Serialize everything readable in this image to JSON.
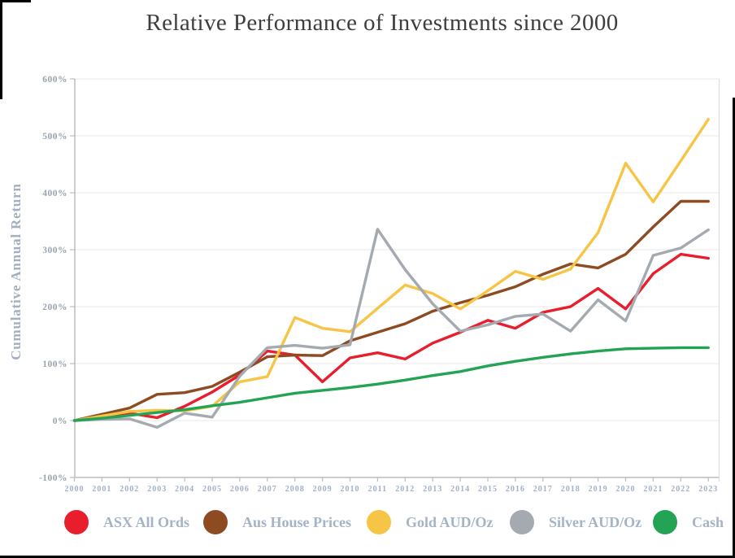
{
  "chart_data": {
    "type": "line",
    "title": "Relative Performance of Investments since 2000",
    "ylabel": "Cumulative Annual Return",
    "xlabel": "",
    "ylim": [
      -100,
      600
    ],
    "y_tick_step": 100,
    "y_tick_suffix": "%",
    "grid": true,
    "legend_position": "bottom",
    "categories": [
      "2000",
      "2001",
      "2002",
      "2003",
      "2004",
      "2005",
      "2006",
      "2007",
      "2008",
      "2009",
      "2010",
      "2011",
      "2012",
      "2013",
      "2014",
      "2015",
      "2016",
      "2017",
      "2018",
      "2019",
      "2020",
      "2021",
      "2022",
      "2023"
    ],
    "series": [
      {
        "name": "ASX All Ords",
        "color": "#e81e2c",
        "values": [
          0,
          5,
          13,
          5,
          25,
          50,
          80,
          122,
          115,
          68,
          110,
          119,
          108,
          136,
          155,
          176,
          162,
          190,
          200,
          232,
          196,
          258,
          292,
          285
        ]
      },
      {
        "name": "Aus House Prices",
        "color": "#8e4a21",
        "values": [
          0,
          11,
          22,
          46,
          49,
          60,
          85,
          112,
          115,
          114,
          140,
          155,
          170,
          192,
          207,
          220,
          235,
          257,
          275,
          268,
          292,
          340,
          385,
          385
        ]
      },
      {
        "name": "Gold AUD/Oz",
        "color": "#f6c545",
        "values": [
          0,
          8,
          16,
          18,
          17,
          25,
          68,
          77,
          181,
          162,
          156,
          197,
          238,
          223,
          196,
          228,
          262,
          248,
          266,
          330,
          452,
          384,
          456,
          529
        ]
      },
      {
        "name": "Silver AUD/Oz",
        "color": "#a4aab0",
        "values": [
          0,
          2,
          3,
          -12,
          13,
          6,
          78,
          128,
          132,
          127,
          133,
          336,
          265,
          205,
          157,
          168,
          183,
          187,
          157,
          212,
          175,
          290,
          303,
          335
        ]
      },
      {
        "name": "Cash",
        "color": "#23a455",
        "values": [
          0,
          4,
          9,
          14,
          19,
          26,
          32,
          40,
          48,
          53,
          58,
          64,
          71,
          79,
          86,
          96,
          104,
          111,
          117,
          122,
          126,
          127,
          128,
          128
        ]
      }
    ],
    "axis_colors": {
      "grid": "#e8eaeb",
      "axis": "#b9bdc1",
      "plot_right_edge": "#dcdfe1"
    }
  }
}
